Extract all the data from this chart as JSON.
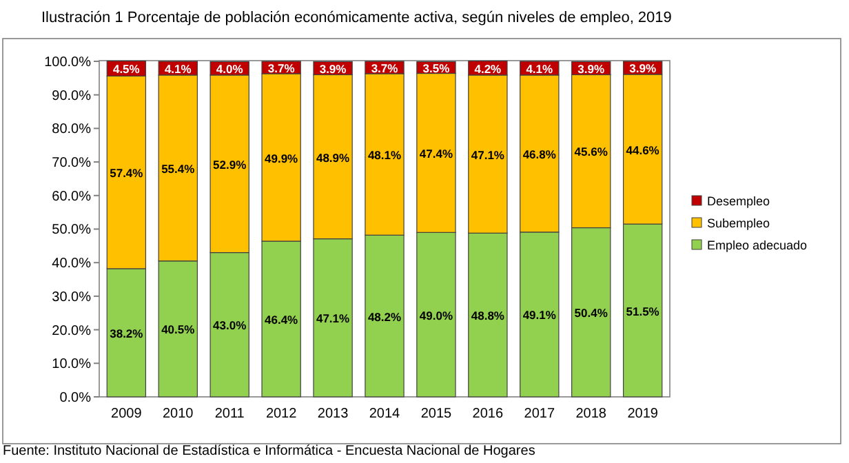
{
  "chart_data": {
    "type": "bar",
    "stacked": true,
    "title": "Ilustración 1 Porcentaje de población económicamente activa, según niveles de empleo, 2019",
    "categories": [
      "2009",
      "2010",
      "2011",
      "2012",
      "2013",
      "2014",
      "2015",
      "2016",
      "2017",
      "2018",
      "2019"
    ],
    "series": [
      {
        "name": "Empleo adecuado",
        "color": "#92d050",
        "values": [
          38.2,
          40.5,
          43.0,
          46.4,
          47.1,
          48.2,
          49.0,
          48.8,
          49.1,
          50.4,
          51.5
        ],
        "value_labels": [
          "38.2%",
          "40.5%",
          "43.0%",
          "46.4%",
          "47.1%",
          "48.2%",
          "49.0%",
          "48.8%",
          "49.1%",
          "50.4%",
          "51.5%"
        ]
      },
      {
        "name": "Subempleo",
        "color": "#ffc000",
        "values": [
          57.4,
          55.4,
          52.9,
          49.9,
          48.9,
          48.1,
          47.4,
          47.1,
          46.8,
          45.6,
          44.6
        ],
        "value_labels": [
          "57.4%",
          "55.4%",
          "52.9%",
          "49.9%",
          "48.9%",
          "48.1%",
          "47.4%",
          "47.1%",
          "46.8%",
          "45.6%",
          "44.6%"
        ]
      },
      {
        "name": "Desempleo",
        "color": "#c00000",
        "values": [
          4.5,
          4.1,
          4.0,
          3.7,
          3.9,
          3.7,
          3.5,
          4.2,
          4.1,
          3.9,
          3.9
        ],
        "value_labels": [
          "4.5%",
          "4.1%",
          "4.0%",
          "3.7%",
          "3.9%",
          "3.7%",
          "3.5%",
          "4.2%",
          "4.1%",
          "3.9%",
          "3.9%"
        ]
      }
    ],
    "ylim": [
      0,
      100.2
    ],
    "yticks": [
      {
        "value": 0,
        "label": "0.0%"
      },
      {
        "value": 10,
        "label": "10.0%"
      },
      {
        "value": 20,
        "label": "20.0%"
      },
      {
        "value": 30,
        "label": "30.0%"
      },
      {
        "value": 40,
        "label": "40.0%"
      },
      {
        "value": 50,
        "label": "50.0%"
      },
      {
        "value": 60,
        "label": "60.0%"
      },
      {
        "value": 70,
        "label": "70.0%"
      },
      {
        "value": 80,
        "label": "80.0%"
      },
      {
        "value": 90,
        "label": "90.0%"
      },
      {
        "value": 100,
        "label": "100.0%"
      }
    ],
    "legend": "right",
    "annotations": [
      "Fuente: Instituto Nacional de Estadística e Informática - Encuesta Nacional de Hogares"
    ]
  }
}
